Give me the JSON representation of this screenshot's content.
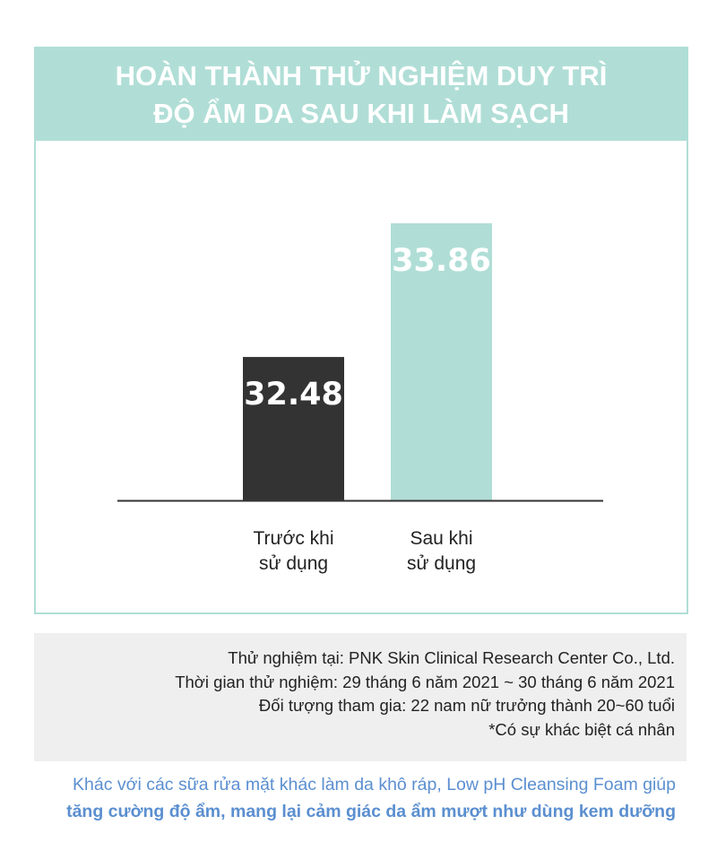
{
  "chart_data": {
    "type": "bar",
    "title": "HOÀN THÀNH THỬ NGHIỆM DUY TRÌ ĐỘ ẨM DA SAU KHI LÀM SẠCH",
    "title_lines": [
      "HOÀN THÀNH THỬ NGHIỆM DUY TRÌ",
      "ĐỘ ẨM DA SAU KHI LÀM SẠCH"
    ],
    "categories": [
      [
        "Trước khi",
        "sử dụng"
      ],
      [
        "Sau khi",
        "sử dụng"
      ]
    ],
    "values": [
      32.48,
      33.86
    ],
    "data_labels": [
      "32.48",
      "33.86"
    ],
    "colors": [
      "#333333",
      "#b0ded6"
    ],
    "xlabel": "",
    "ylabel": "",
    "ylim": [
      31.0,
      34.73
    ],
    "grid": false,
    "legend": "none"
  },
  "notes": [
    "Thử nghiệm tại: PNK Skin Clinical Research Center Co., Ltd.",
    "Thời gian thử nghiệm: 29 tháng 6 năm 2021 ~ 30 tháng 6 năm 2021",
    "Đối tượng tham gia: 22 nam nữ trưởng thành 20~60 tuổi",
    "*Có sự khác biệt cá nhân"
  ],
  "footer": {
    "line1": "Khác với các sữa rửa mặt khác làm da khô ráp, Low pH Cleansing Foam giúp",
    "line2": "tăng cường độ ẩm, mang lại cảm giác da ẩm mượt như dùng kem dưỡng",
    "color": "#5b8fd0"
  }
}
